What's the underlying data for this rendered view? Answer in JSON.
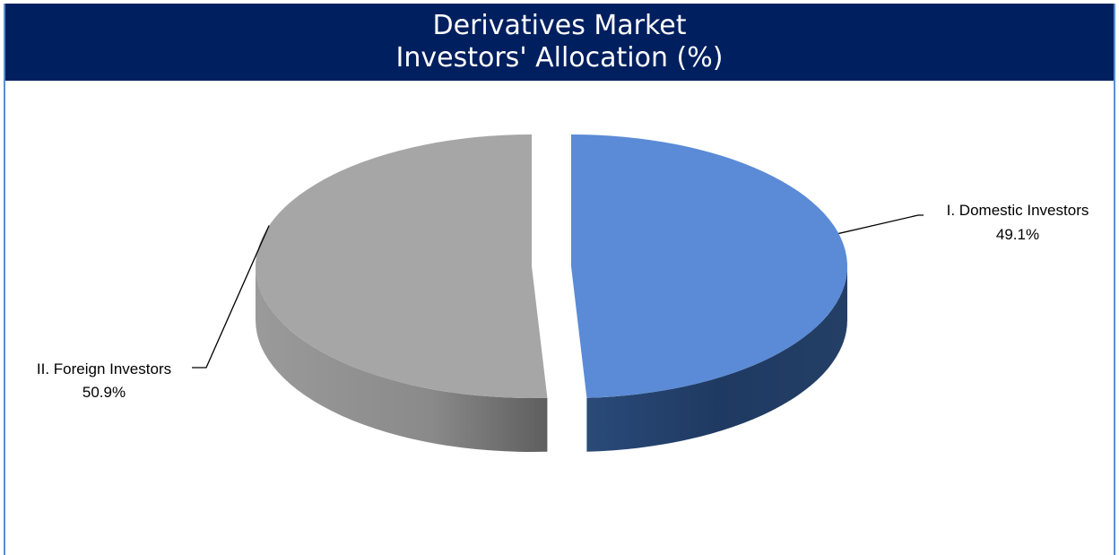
{
  "chart_data": {
    "type": "pie",
    "title": [
      "Derivatives Market",
      "Investors' Allocation (%)"
    ],
    "categories": [
      "I. Domestic Investors",
      "II. Foreign Investors"
    ],
    "values": [
      49.1,
      50.9
    ],
    "labels": [
      "49.1%",
      "50.9%"
    ],
    "colors": [
      "#5b8bd6",
      "#a6a6a6"
    ],
    "style": "3d-exploded",
    "legend": "none"
  },
  "theme": {
    "title_background": "#001f5f",
    "title_color": "#ffffff",
    "frame_border": "#5b8fd1"
  }
}
